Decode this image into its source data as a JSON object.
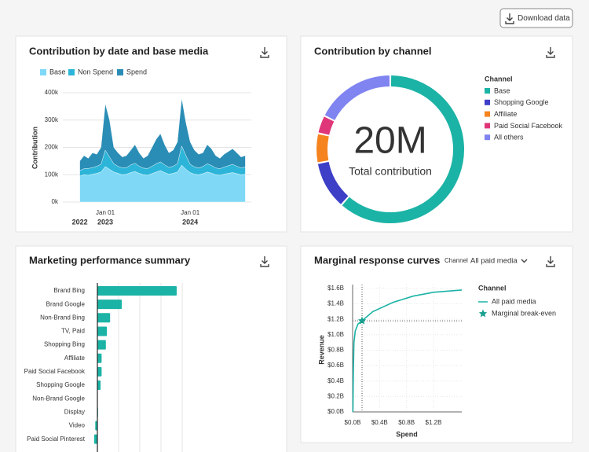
{
  "header": {
    "download_button": "Download data"
  },
  "chart_data": [
    {
      "type": "area",
      "stacked": true,
      "title": "Contribution by date and base media",
      "y_label": "Contribution",
      "legend": "top",
      "x": [
        2022.7,
        2022.75,
        2022.8,
        2022.85,
        2022.9,
        2022.95,
        2023,
        2023.05,
        2023.1,
        2023.15,
        2023.2,
        2023.25,
        2023.3,
        2023.35,
        2023.4,
        2023.45,
        2023.5,
        2023.55,
        2023.6,
        2023.65,
        2023.7,
        2023.75,
        2023.8,
        2023.85,
        2023.9,
        2023.95,
        2024,
        2024.05,
        2024.1,
        2024.15,
        2024.2,
        2024.25,
        2024.3,
        2024.35,
        2024.4,
        2024.45,
        2024.5,
        2024.55,
        2024.6,
        2024.65
      ],
      "xlim": [
        2022.5,
        2024.72
      ],
      "xticks": [
        {
          "value": 2023,
          "label": "Jan 01"
        },
        {
          "value": 2024,
          "label": "Jan 01"
        }
      ],
      "x_year_labels": [
        {
          "value": 2022.7,
          "label": "2022"
        },
        {
          "value": 2023,
          "label": "2023"
        },
        {
          "value": 2024,
          "label": "2024"
        }
      ],
      "ylim": [
        0,
        400000
      ],
      "yticks": [
        {
          "value": 0,
          "label": "0k"
        },
        {
          "value": 100000,
          "label": "100k"
        },
        {
          "value": 200000,
          "label": "200k"
        },
        {
          "value": 300000,
          "label": "300k"
        },
        {
          "value": 400000,
          "label": "400k"
        }
      ],
      "grid": true,
      "series": [
        {
          "name": "Base",
          "color": "#7fd9f6",
          "values": [
            95000,
            100000,
            98000,
            102000,
            105000,
            110000,
            130000,
            120000,
            110000,
            105000,
            100000,
            102000,
            108000,
            112000,
            105000,
            100000,
            98000,
            104000,
            110000,
            115000,
            108000,
            102000,
            105000,
            110000,
            135000,
            120000,
            108000,
            102000,
            100000,
            104000,
            110000,
            106000,
            100000,
            98000,
            102000,
            105000,
            108000,
            104000,
            100000,
            102000
          ]
        },
        {
          "name": "Non Spend",
          "color": "#2cb5d8",
          "values": [
            20000,
            22000,
            25000,
            24000,
            26000,
            28000,
            60000,
            45000,
            30000,
            26000,
            25000,
            24000,
            28000,
            30000,
            26000,
            24000,
            25000,
            27000,
            30000,
            32000,
            28000,
            25000,
            26000,
            30000,
            70000,
            50000,
            30000,
            27000,
            25000,
            26000,
            30000,
            28000,
            25000,
            24000,
            26000,
            28000,
            30000,
            27000,
            25000,
            26000
          ]
        },
        {
          "name": "Spend",
          "color": "#2a8db6",
          "values": [
            35000,
            48000,
            37000,
            54000,
            44000,
            62000,
            170000,
            135000,
            60000,
            49000,
            40000,
            44000,
            54000,
            68000,
            49000,
            36000,
            47000,
            69000,
            90000,
            103000,
            74000,
            53000,
            59000,
            80000,
            175000,
            120000,
            82000,
            61000,
            50000,
            50000,
            70000,
            61000,
            45000,
            38000,
            47000,
            52000,
            57000,
            49000,
            40000,
            42000
          ]
        }
      ]
    },
    {
      "type": "donut",
      "title": "Contribution by channel",
      "center_value": "20M",
      "center_label": "Total contribution",
      "legend_title": "Channel",
      "categories": [
        "Base",
        "Shopping Google",
        "Affiliate",
        "Paid Social Facebook",
        "All others"
      ],
      "values": [
        12300000,
        2100000,
        1300000,
        800000,
        3500000
      ],
      "colors": [
        "#1bb3a6",
        "#3d3fc6",
        "#f5841f",
        "#df3679",
        "#8084f1"
      ]
    },
    {
      "type": "hbar",
      "title": "Marketing performance summary",
      "categories": [
        "Brand Bing",
        "Brand Google",
        "Non-Brand Bing",
        "TV, Paid",
        "Shopping Bing",
        "Affiliate",
        "Paid Social Facebook",
        "Shopping Google",
        "Non-Brand Google",
        "Display",
        "Video",
        "Paid Social Pinterest"
      ],
      "values": [
        3.74,
        1.15,
        0.6,
        0.45,
        0.4,
        0.2,
        0.2,
        0.15,
        0.02,
        0.03,
        -0.1,
        -0.15
      ],
      "color": "#1bb3a6",
      "xlim": [
        -0.25,
        4.2
      ],
      "xgrid": [
        1,
        2,
        3,
        4
      ]
    },
    {
      "type": "line",
      "title": "Marginal response curves",
      "x_label": "Spend",
      "y_label": "Revenue",
      "filter_label": "Channel",
      "filter_value": "All paid media",
      "legend_title": "Channel",
      "x": [
        0.005,
        0.01,
        0.02,
        0.04,
        0.08,
        0.14,
        0.3,
        0.6,
        0.9,
        1.2,
        1.62
      ],
      "xlim": [
        0,
        1.62
      ],
      "xticks": [
        {
          "value": 0,
          "label": "$0.0B"
        },
        {
          "value": 0.4,
          "label": "$0.4B"
        },
        {
          "value": 0.8,
          "label": "$0.8B"
        },
        {
          "value": 1.2,
          "label": "$1.2B"
        }
      ],
      "ylim": [
        0,
        1.65
      ],
      "yticks": [
        {
          "value": 0,
          "label": "$0.0B"
        },
        {
          "value": 0.2,
          "label": "$0.2B"
        },
        {
          "value": 0.4,
          "label": "$0.4B"
        },
        {
          "value": 0.6,
          "label": "$0.6B"
        },
        {
          "value": 0.8,
          "label": "$0.8B"
        },
        {
          "value": 1.0,
          "label": "$1.0B"
        },
        {
          "value": 1.2,
          "label": "$1.2B"
        },
        {
          "value": 1.4,
          "label": "$1.4B"
        },
        {
          "value": 1.6,
          "label": "$1.6B"
        }
      ],
      "grid": true,
      "series": [
        {
          "name": "All paid media",
          "color": "#1bb3a6",
          "values": [
            0,
            0.5,
            0.9,
            1.05,
            1.14,
            1.18,
            1.3,
            1.42,
            1.5,
            1.55,
            1.58
          ]
        }
      ],
      "markers": [
        {
          "name": "Marginal break-even",
          "x": 0.14,
          "y": 1.18,
          "color": "#18a08f"
        }
      ]
    }
  ]
}
